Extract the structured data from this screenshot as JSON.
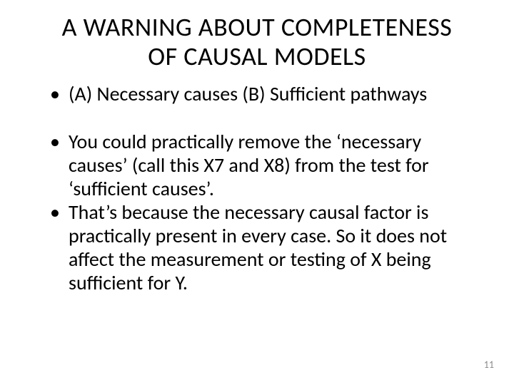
{
  "title_line1": "A WARNING ABOUT COMPLETENESS",
  "title_line2": "OF CAUSAL MODELS",
  "title_fontsize": 36,
  "title_color": "#000000",
  "bullets": {
    "b1": "(A) Necessary causes (B) Sufficient pathways",
    "b2": "You could practically remove the ‘necessary causes’ (call this X7 and X8) from the test for ‘sufficient causes’.",
    "b3": "That’s because the necessary causal factor is practically present in every case. So it does not affect the measurement or testing of X being sufficient for Y."
  },
  "bullet_fontsize": 28,
  "bullet_color": "#000000",
  "page_number": "11",
  "page_number_fontsize": 14,
  "page_number_color": "#8a8a8a",
  "background_color": "#ffffff"
}
